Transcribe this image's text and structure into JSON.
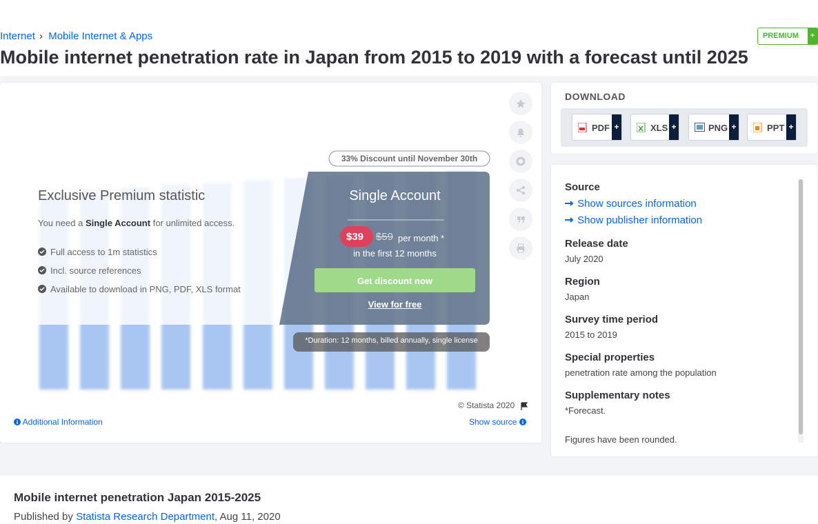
{
  "breadcrumb": {
    "items": [
      "Internet",
      "Mobile Internet & Apps"
    ],
    "separator": "›"
  },
  "premium_badge": {
    "label": "PREMIUM",
    "plus": "+"
  },
  "title": "Mobile internet penetration rate in Japan from 2015 to 2019 with a forecast until 2025",
  "paywall": {
    "discount": "33% Discount until November 30th",
    "heading": "Exclusive Premium statistic",
    "need": [
      "You need a",
      "Single Account",
      "for unlimited access."
    ],
    "features": [
      "Full access to 1m statistics",
      "Incl. source references",
      "Available to download in PNG, PDF, XLS format"
    ],
    "offer": {
      "title": "Single Account",
      "price": "$39",
      "old_price": "$59",
      "per": "per month *",
      "period": "in the first 12 months",
      "button": "Get discount now",
      "free": "View for free"
    },
    "duration": "*Duration: 12 months, billed annually, single license"
  },
  "chart_footer": {
    "copyright": "© Statista 2020",
    "additional": "Additional Information",
    "show_source": "Show source"
  },
  "download": {
    "label": "DOWNLOAD",
    "formats": [
      "PDF",
      "XLS",
      "PNG",
      "PPT"
    ],
    "plus": "+"
  },
  "details": {
    "source": {
      "label": "Source",
      "links": [
        "Show sources information",
        "Show publisher information"
      ]
    },
    "fields": [
      {
        "label": "Release date",
        "value": "July 2020"
      },
      {
        "label": "Region",
        "value": "Japan"
      },
      {
        "label": "Survey time period",
        "value": "2015 to 2019"
      },
      {
        "label": "Special properties",
        "value": "penetration rate among the population"
      }
    ],
    "notes": {
      "label": "Supplementary notes",
      "lines": [
        "*Forecast.",
        "Figures have been rounded."
      ]
    }
  },
  "footer": {
    "heading": "Mobile internet penetration Japan 2015-2025",
    "published": [
      "Published by",
      "Statista Research Department",
      ", Aug 11, 2020"
    ]
  }
}
